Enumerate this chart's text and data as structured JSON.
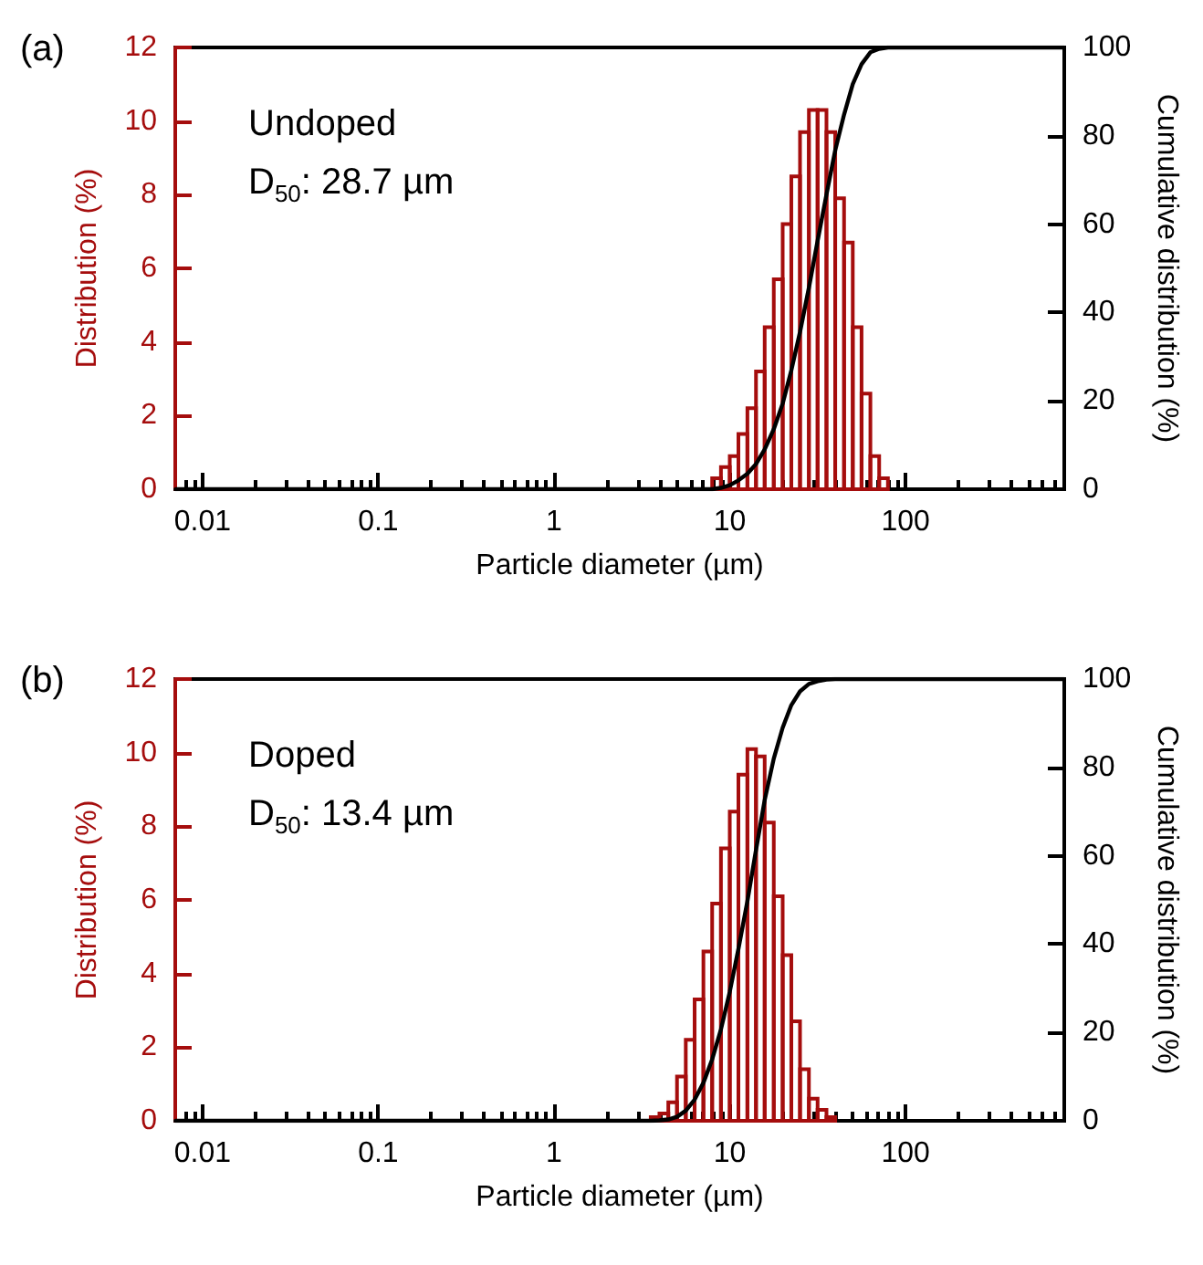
{
  "chart_data": [
    {
      "type": "histogram",
      "title": "(a)",
      "xlabel": "Particle diameter (µm)",
      "ylabel": "Distribution (%)",
      "y2label": "Cumulative distribution (%)",
      "annotations": [
        "Undoped",
        "D$_{50}$: 28.7 µm"
      ],
      "log": "x",
      "grid": false,
      "marker": "none",
      "xlim": [
        0.007,
        800
      ],
      "ylim": [
        0,
        12
      ],
      "y2lim": [
        0,
        100
      ],
      "xticks": [
        {
          "value": 0.008,
          "label": null
        },
        {
          "value": 0.009,
          "label": null
        },
        0.01,
        {
          "value": 0.02,
          "label": null
        },
        {
          "value": 0.03,
          "label": null
        },
        {
          "value": 0.04,
          "label": null
        },
        {
          "value": 0.05,
          "label": null
        },
        {
          "value": 0.06,
          "label": null
        },
        {
          "value": 0.07,
          "label": null
        },
        {
          "value": 0.08,
          "label": null
        },
        {
          "value": 0.09,
          "label": null
        },
        0.1,
        {
          "value": 0.2,
          "label": null
        },
        {
          "value": 0.3,
          "label": null
        },
        {
          "value": 0.4,
          "label": null
        },
        {
          "value": 0.5,
          "label": null
        },
        {
          "value": 0.6,
          "label": null
        },
        {
          "value": 0.7,
          "label": null
        },
        {
          "value": 0.8,
          "label": null
        },
        {
          "value": 0.9,
          "label": null
        },
        1,
        {
          "value": 2,
          "label": null
        },
        {
          "value": 3,
          "label": null
        },
        {
          "value": 4,
          "label": null
        },
        {
          "value": 5,
          "label": null
        },
        {
          "value": 6,
          "label": null
        },
        {
          "value": 7,
          "label": null
        },
        {
          "value": 8,
          "label": null
        },
        {
          "value": 9,
          "label": null
        },
        10,
        {
          "value": 20,
          "label": null
        },
        {
          "value": 30,
          "label": null
        },
        {
          "value": 40,
          "label": null
        },
        {
          "value": 50,
          "label": null
        },
        {
          "value": 60,
          "label": null
        },
        {
          "value": 70,
          "label": null
        },
        {
          "value": 80,
          "label": null
        },
        {
          "value": 90,
          "label": null
        },
        100,
        {
          "value": 200,
          "label": null
        },
        {
          "value": 300,
          "label": null
        },
        {
          "value": 400,
          "label": null
        },
        {
          "value": 500,
          "label": null
        },
        {
          "value": 600,
          "label": null
        },
        {
          "value": 700,
          "label": null
        },
        {
          "value": 800,
          "label": null
        }
      ],
      "yticks": [
        0,
        2,
        4,
        6,
        8,
        10,
        12
      ],
      "y2ticks": [
        0,
        20,
        40,
        60,
        80,
        100
      ],
      "series": [
        {
          "color": "#a50d0d",
          "bins": [
            7.94,
            8.91,
            10,
            11.2,
            12.6,
            14.1,
            15.8,
            17.8,
            20,
            22.4,
            25.1,
            28.2,
            31.6,
            35.5,
            39.8,
            44.7,
            50.1,
            56.2,
            63.1,
            70.8,
            79.4
          ],
          "values": [
            0.3,
            0.6,
            0.9,
            1.5,
            2.2,
            3.2,
            4.4,
            5.7,
            7.2,
            8.5,
            9.7,
            10.3,
            10.3,
            9.7,
            7.9,
            6.7,
            4.4,
            2.6,
            0.9,
            0.3
          ]
        },
        {
          "type": "line",
          "axis": "y2",
          "color": "#000000",
          "x": [
            0.007,
            7.94,
            8.91,
            10,
            11.2,
            12.6,
            14.1,
            15.8,
            17.8,
            20,
            22.4,
            25.1,
            28.2,
            31.6,
            35.5,
            39.8,
            44.7,
            50.1,
            56.2,
            63.1,
            70.8,
            79.4,
            800
          ],
          "values": [
            0,
            0,
            0.3,
            0.9,
            2,
            3.5,
            5.7,
            9,
            13.6,
            19.4,
            26.9,
            35.6,
            45.6,
            56.2,
            66.7,
            76.7,
            84.8,
            91.7,
            96.2,
            98.9,
            99.7,
            100,
            100
          ]
        }
      ]
    },
    {
      "type": "histogram",
      "title": "(b)",
      "xlabel": "Particle diameter (µm)",
      "ylabel": "Distribution (%)",
      "y2label": "Cumulative distribution (%)",
      "annotations": [
        "Doped",
        "D$_{50}$: 13.4 µm"
      ],
      "log": "x",
      "grid": false,
      "marker": "none",
      "xlim": [
        0.007,
        800
      ],
      "ylim": [
        0,
        12
      ],
      "y2lim": [
        0,
        100
      ],
      "xticks": [
        {
          "value": 0.008,
          "label": null
        },
        {
          "value": 0.009,
          "label": null
        },
        0.01,
        {
          "value": 0.02,
          "label": null
        },
        {
          "value": 0.03,
          "label": null
        },
        {
          "value": 0.04,
          "label": null
        },
        {
          "value": 0.05,
          "label": null
        },
        {
          "value": 0.06,
          "label": null
        },
        {
          "value": 0.07,
          "label": null
        },
        {
          "value": 0.08,
          "label": null
        },
        {
          "value": 0.09,
          "label": null
        },
        0.1,
        {
          "value": 0.2,
          "label": null
        },
        {
          "value": 0.3,
          "label": null
        },
        {
          "value": 0.4,
          "label": null
        },
        {
          "value": 0.5,
          "label": null
        },
        {
          "value": 0.6,
          "label": null
        },
        {
          "value": 0.7,
          "label": null
        },
        {
          "value": 0.8,
          "label": null
        },
        {
          "value": 0.9,
          "label": null
        },
        1,
        {
          "value": 2,
          "label": null
        },
        {
          "value": 3,
          "label": null
        },
        {
          "value": 4,
          "label": null
        },
        {
          "value": 5,
          "label": null
        },
        {
          "value": 6,
          "label": null
        },
        {
          "value": 7,
          "label": null
        },
        {
          "value": 8,
          "label": null
        },
        {
          "value": 9,
          "label": null
        },
        10,
        {
          "value": 20,
          "label": null
        },
        {
          "value": 30,
          "label": null
        },
        {
          "value": 40,
          "label": null
        },
        {
          "value": 50,
          "label": null
        },
        {
          "value": 60,
          "label": null
        },
        {
          "value": 70,
          "label": null
        },
        {
          "value": 80,
          "label": null
        },
        {
          "value": 90,
          "label": null
        },
        100,
        {
          "value": 200,
          "label": null
        },
        {
          "value": 300,
          "label": null
        },
        {
          "value": 400,
          "label": null
        },
        {
          "value": 500,
          "label": null
        },
        {
          "value": 600,
          "label": null
        },
        {
          "value": 700,
          "label": null
        },
        {
          "value": 800,
          "label": null
        }
      ],
      "yticks": [
        0,
        2,
        4,
        6,
        8,
        10,
        12
      ],
      "y2ticks": [
        0,
        20,
        40,
        60,
        80,
        100
      ],
      "series": [
        {
          "color": "#a50d0d",
          "bins": [
            3.55,
            3.98,
            4.47,
            5.01,
            5.62,
            6.31,
            7.08,
            7.94,
            8.91,
            10,
            11.2,
            12.6,
            14.1,
            15.8,
            17.8,
            20,
            22.4,
            25.1,
            28.2,
            31.6,
            35.5,
            39.8
          ],
          "values": [
            0.1,
            0.2,
            0.5,
            1.2,
            2.2,
            3.3,
            4.6,
            5.9,
            7.4,
            8.4,
            9.4,
            10.1,
            9.9,
            8.1,
            6.1,
            4.5,
            2.7,
            1.4,
            0.6,
            0.3,
            0.1
          ]
        },
        {
          "type": "line",
          "axis": "y2",
          "color": "#000000",
          "x": [
            0.007,
            3.55,
            3.98,
            4.47,
            5.01,
            5.62,
            6.31,
            7.08,
            7.94,
            8.91,
            10,
            11.2,
            12.6,
            14.1,
            15.8,
            17.8,
            20,
            22.4,
            25.1,
            28.2,
            31.6,
            35.5,
            39.8,
            800
          ],
          "values": [
            0,
            0,
            0.1,
            0.3,
            0.9,
            2.3,
            4.8,
            8.6,
            13.9,
            20.7,
            29.2,
            38.9,
            49.7,
            61.3,
            72.6,
            82,
            89,
            94.1,
            97.2,
            98.9,
            99.5,
            99.9,
            100,
            100
          ]
        }
      ]
    }
  ]
}
